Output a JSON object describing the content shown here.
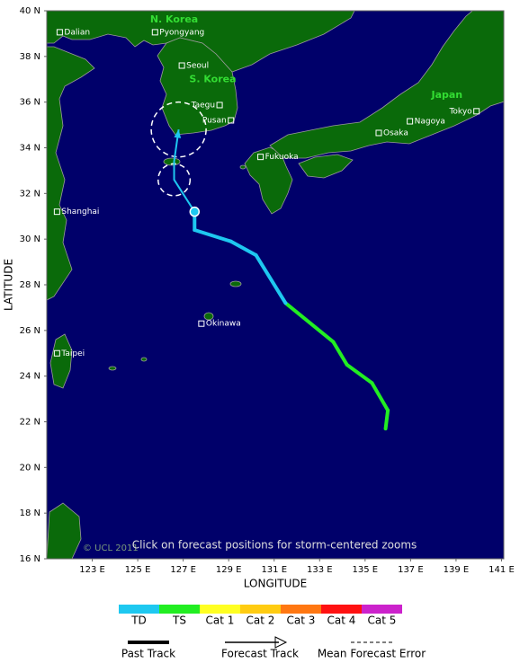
{
  "map": {
    "xlabel": "LONGITUDE",
    "ylabel": "LATITUDE",
    "lon_range": [
      121,
      141.1
    ],
    "lat_range": [
      16,
      40
    ],
    "lon_ticks": [
      {
        "value": 123,
        "label": "123 E"
      },
      {
        "value": 125,
        "label": "125 E"
      },
      {
        "value": 127,
        "label": "127 E"
      },
      {
        "value": 129,
        "label": "129 E"
      },
      {
        "value": 131,
        "label": "131 E"
      },
      {
        "value": 133,
        "label": "133 E"
      },
      {
        "value": 135,
        "label": "135 E"
      },
      {
        "value": 137,
        "label": "137 E"
      },
      {
        "value": 139,
        "label": "139 E"
      },
      {
        "value": 141,
        "label": "141 E"
      }
    ],
    "lat_ticks": [
      {
        "value": 16,
        "label": "16 N"
      },
      {
        "value": 18,
        "label": "18 N"
      },
      {
        "value": 20,
        "label": "20 N"
      },
      {
        "value": 22,
        "label": "22 N"
      },
      {
        "value": 24,
        "label": "24 N"
      },
      {
        "value": 26,
        "label": "26 N"
      },
      {
        "value": 28,
        "label": "28 N"
      },
      {
        "value": 30,
        "label": "30 N"
      },
      {
        "value": 32,
        "label": "32 N"
      },
      {
        "value": 34,
        "label": "34 N"
      },
      {
        "value": 36,
        "label": "36 N"
      },
      {
        "value": 38,
        "label": "38 N"
      },
      {
        "value": 40,
        "label": "40 N"
      }
    ],
    "regions": [
      {
        "label": "N. Korea",
        "lon": 126.6,
        "lat": 39.6
      },
      {
        "label": "S. Korea",
        "lon": 128.3,
        "lat": 37.0
      },
      {
        "label": "Japan",
        "lon": 138.6,
        "lat": 36.3
      }
    ],
    "cities": [
      {
        "label": "Dalian",
        "lon": 121.57,
        "lat": 39.06,
        "label_side": "right"
      },
      {
        "label": "Pyongyang",
        "lon": 125.76,
        "lat": 39.06,
        "label_side": "right"
      },
      {
        "label": "Seoul",
        "lon": 126.94,
        "lat": 37.6,
        "label_side": "right"
      },
      {
        "label": "Taegu",
        "lon": 128.6,
        "lat": 35.87,
        "label_side": "left"
      },
      {
        "label": "Pusan",
        "lon": 129.1,
        "lat": 35.2,
        "label_side": "left"
      },
      {
        "label": "Fukuoka",
        "lon": 130.4,
        "lat": 33.6,
        "label_side": "right"
      },
      {
        "label": "Osaka",
        "lon": 135.6,
        "lat": 34.65,
        "label_side": "right"
      },
      {
        "label": "Nagoya",
        "lon": 136.97,
        "lat": 35.16,
        "label_side": "right"
      },
      {
        "label": "Tokyo",
        "lon": 139.9,
        "lat": 35.6,
        "label_side": "left"
      },
      {
        "label": "Shanghai",
        "lon": 121.45,
        "lat": 31.2,
        "label_side": "right"
      },
      {
        "label": "Okinawa",
        "lon": 127.8,
        "lat": 26.3,
        "label_side": "right"
      },
      {
        "label": "Taipei",
        "lon": 121.45,
        "lat": 25.0,
        "label_side": "right"
      }
    ],
    "past_track": {
      "lon": [
        135.9,
        136.0,
        135.3,
        134.2,
        133.6,
        131.5,
        130.2,
        129.1,
        127.5,
        127.5
      ],
      "lat": [
        21.7,
        22.5,
        23.7,
        24.5,
        25.5,
        27.2,
        29.3,
        29.9,
        30.4,
        31.2
      ],
      "category": [
        "TS",
        "TS",
        "TS",
        "TS",
        "TS",
        "TD",
        "TD",
        "TD",
        "TD",
        "TD"
      ]
    },
    "forecast_track": {
      "lon": [
        127.5,
        126.6,
        126.6,
        126.8
      ],
      "lat": [
        31.2,
        32.6,
        33.4,
        34.8
      ],
      "error_radius": [
        null,
        0.7,
        null,
        1.2
      ]
    },
    "copyright": "© UCL 2011",
    "note": "Click on forecast positions for storm-centered zooms",
    "intensity_legend": [
      {
        "label": "TD",
        "color": "#1ec8f0"
      },
      {
        "label": "TS",
        "color": "#22ee22"
      },
      {
        "label": "Cat 1",
        "color": "#ffff22"
      },
      {
        "label": "Cat 2",
        "color": "#ffcc11"
      },
      {
        "label": "Cat 3",
        "color": "#ff7711"
      },
      {
        "label": "Cat 4",
        "color": "#ff1111"
      },
      {
        "label": "Cat 5",
        "color": "#cc22cc"
      }
    ],
    "line_legend": {
      "past": "Past Track",
      "forecast": "Forecast Track",
      "error": "Mean Forecast Error"
    }
  }
}
